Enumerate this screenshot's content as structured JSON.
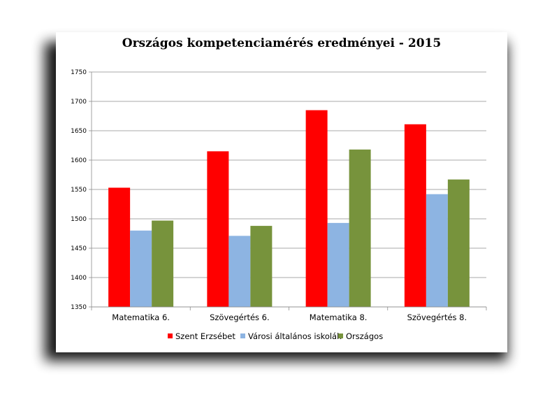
{
  "chart_data": {
    "type": "bar",
    "title": "Országos kompetenciamérés eredményei - 2015",
    "categories": [
      "Matematika 6.",
      "Szövegértés 6.",
      "Matematika 8.",
      "Szövegértés 8."
    ],
    "series": [
      {
        "name": "Szent Erzsébet",
        "color": "#ff0000",
        "values": [
          1553,
          1615,
          1685,
          1661
        ]
      },
      {
        "name": "Városi általános iskolák",
        "color": "#8db4e2",
        "values": [
          1480,
          1471,
          1493,
          1542
        ]
      },
      {
        "name": "Országos",
        "color": "#77933c",
        "values": [
          1497,
          1488,
          1618,
          1567
        ]
      }
    ],
    "ylim": [
      1350,
      1750
    ],
    "yticks": [
      1350,
      1400,
      1450,
      1500,
      1550,
      1600,
      1650,
      1700,
      1750
    ],
    "grid": true,
    "legend": "bottom"
  }
}
